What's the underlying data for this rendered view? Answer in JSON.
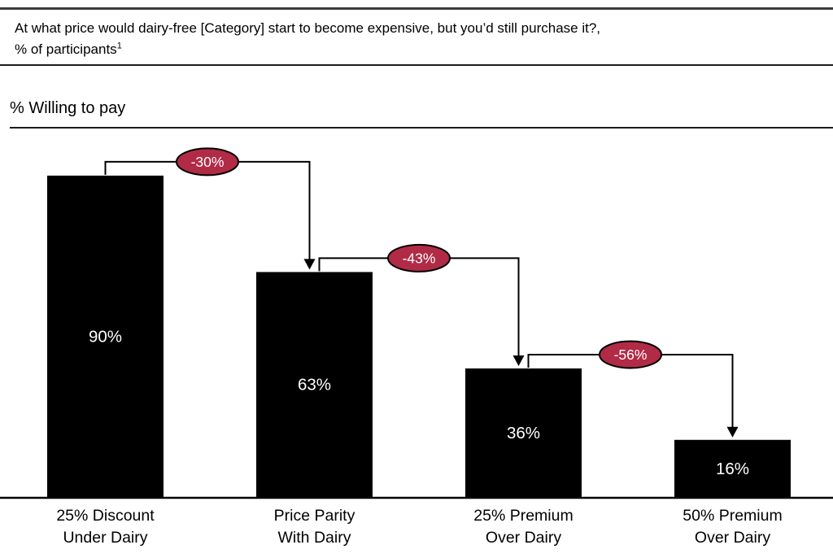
{
  "header": {
    "question_line1": "At what price would dairy-free [Category] start to become expensive, but you’d still purchase it?,",
    "question_line2": "% of participants",
    "footnote_marker": "1"
  },
  "chart": {
    "axis_title": "% Willing to pay"
  },
  "chart_data": {
    "type": "bar",
    "title": "% Willing to pay",
    "categories": [
      "25% Discount Under Dairy",
      "Price Parity With Dairy",
      "25% Premium Over Dairy",
      "50% Premium Over Dairy"
    ],
    "category_lines": [
      [
        "25% Discount",
        "Under Dairy"
      ],
      [
        "Price Parity",
        "With Dairy"
      ],
      [
        "25% Premium",
        "Over Dairy"
      ],
      [
        "50% Premium",
        "Over Dairy"
      ]
    ],
    "values": [
      90,
      63,
      36,
      16
    ],
    "value_labels": [
      "90%",
      "63%",
      "36%",
      "16%"
    ],
    "unit": "%",
    "ylim": [
      0,
      100
    ],
    "deltas": [
      "-30%",
      "-43%",
      "-56%"
    ],
    "grid": false,
    "legend": false,
    "bar_color": "#000000",
    "value_label_color": "#ffffff",
    "delta_badge_fill": "#b12b46",
    "delta_badge_text_color": "#ffffff",
    "connector_color": "#000000",
    "axis_line_color": "#000000",
    "category_label_color": "#000000"
  }
}
